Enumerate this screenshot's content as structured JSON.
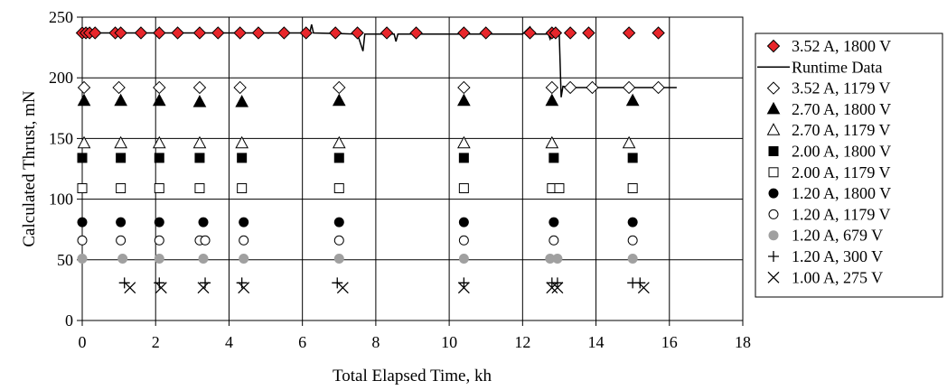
{
  "chart_data": {
    "type": "scatter",
    "xlabel": "Total Elapsed Time, kh",
    "ylabel": "Calculated Thrust, mN",
    "xlim": [
      0,
      18
    ],
    "ylim": [
      0,
      250
    ],
    "xticks": [
      0,
      2,
      4,
      6,
      8,
      10,
      12,
      14,
      16,
      18
    ],
    "yticks": [
      0,
      50,
      100,
      150,
      200,
      250
    ],
    "grid": "vertical and horizontal major gridlines",
    "legend_position": "right",
    "colors": {
      "highlight_fill": "#e8262b",
      "gray_fill": "#a0a0a0",
      "black": "#000000"
    },
    "runtime_data": {
      "name": "Runtime Data",
      "marker": "line",
      "points": [
        [
          0.0,
          237
        ],
        [
          2.0,
          237
        ],
        [
          4.0,
          237
        ],
        [
          6.0,
          237
        ],
        [
          6.2,
          237
        ],
        [
          6.25,
          244
        ],
        [
          6.3,
          237
        ],
        [
          7.5,
          236
        ],
        [
          7.65,
          222
        ],
        [
          7.7,
          236
        ],
        [
          8.5,
          236
        ],
        [
          8.55,
          230
        ],
        [
          8.6,
          236
        ],
        [
          10.0,
          236
        ],
        [
          12.0,
          236
        ],
        [
          12.2,
          242
        ],
        [
          12.3,
          236
        ],
        [
          12.7,
          236
        ],
        [
          12.75,
          232
        ],
        [
          12.8,
          236
        ],
        [
          13.0,
          236
        ],
        [
          13.05,
          184
        ],
        [
          13.1,
          193
        ],
        [
          13.3,
          192
        ],
        [
          15.0,
          192
        ],
        [
          16.2,
          192
        ]
      ]
    },
    "series": [
      {
        "name": "3.52 A, 1800 V",
        "marker": "diamond-filled-red",
        "points": [
          [
            0.0,
            237
          ],
          [
            0.1,
            237
          ],
          [
            0.2,
            237
          ],
          [
            0.35,
            237
          ],
          [
            0.9,
            237
          ],
          [
            1.05,
            237
          ],
          [
            1.6,
            237
          ],
          [
            2.1,
            237
          ],
          [
            2.6,
            237
          ],
          [
            3.2,
            237
          ],
          [
            3.7,
            237
          ],
          [
            4.3,
            237
          ],
          [
            4.8,
            237
          ],
          [
            5.5,
            237
          ],
          [
            6.1,
            237
          ],
          [
            6.9,
            237
          ],
          [
            7.5,
            237
          ],
          [
            8.3,
            237
          ],
          [
            9.1,
            237
          ],
          [
            10.4,
            237
          ],
          [
            11.0,
            237
          ],
          [
            12.2,
            237
          ],
          [
            12.8,
            237
          ],
          [
            12.9,
            237
          ],
          [
            13.3,
            237
          ],
          [
            13.8,
            237
          ],
          [
            14.9,
            237
          ],
          [
            15.7,
            237
          ]
        ]
      },
      {
        "name": "3.52 A, 1179 V",
        "marker": "diamond-open",
        "points": [
          [
            0.05,
            192
          ],
          [
            1.0,
            192
          ],
          [
            2.1,
            192
          ],
          [
            3.2,
            192
          ],
          [
            4.3,
            192
          ],
          [
            7.0,
            192
          ],
          [
            10.4,
            192
          ],
          [
            12.8,
            192
          ],
          [
            13.3,
            192
          ],
          [
            13.9,
            192
          ],
          [
            14.9,
            192
          ],
          [
            15.7,
            192
          ]
        ]
      },
      {
        "name": "2.70 A, 1800 V",
        "marker": "triangle-filled",
        "points": [
          [
            0.05,
            181
          ],
          [
            1.05,
            181
          ],
          [
            2.1,
            181
          ],
          [
            3.2,
            180
          ],
          [
            4.35,
            180
          ],
          [
            7.0,
            181
          ],
          [
            10.4,
            181
          ],
          [
            12.8,
            181
          ],
          [
            15.0,
            181
          ]
        ]
      },
      {
        "name": "2.70 A, 1179 V",
        "marker": "triangle-open",
        "points": [
          [
            0.05,
            146
          ],
          [
            1.05,
            146
          ],
          [
            2.1,
            146
          ],
          [
            3.2,
            146
          ],
          [
            4.35,
            146
          ],
          [
            7.0,
            146
          ],
          [
            10.4,
            146
          ],
          [
            12.8,
            146
          ],
          [
            14.9,
            146
          ]
        ]
      },
      {
        "name": "2.00 A, 1800 V",
        "marker": "square-filled",
        "points": [
          [
            0.0,
            134
          ],
          [
            1.05,
            134
          ],
          [
            2.1,
            134
          ],
          [
            3.2,
            134
          ],
          [
            4.35,
            134
          ],
          [
            7.0,
            134
          ],
          [
            10.4,
            134
          ],
          [
            12.85,
            134
          ],
          [
            15.0,
            134
          ]
        ]
      },
      {
        "name": "2.00 A, 1179 V",
        "marker": "square-open",
        "points": [
          [
            0.0,
            109
          ],
          [
            1.05,
            109
          ],
          [
            2.1,
            109
          ],
          [
            3.2,
            109
          ],
          [
            4.35,
            109
          ],
          [
            7.0,
            109
          ],
          [
            10.4,
            109
          ],
          [
            12.8,
            109
          ],
          [
            13.0,
            109
          ],
          [
            15.0,
            109
          ]
        ]
      },
      {
        "name": "1.20 A, 1800 V",
        "marker": "circle-filled",
        "points": [
          [
            0.0,
            81
          ],
          [
            1.05,
            81
          ],
          [
            2.1,
            81
          ],
          [
            3.3,
            81
          ],
          [
            4.4,
            81
          ],
          [
            7.0,
            81
          ],
          [
            10.4,
            81
          ],
          [
            12.85,
            81
          ],
          [
            15.0,
            81
          ]
        ]
      },
      {
        "name": "1.20 A, 1179 V",
        "marker": "circle-open",
        "points": [
          [
            0.0,
            66
          ],
          [
            1.05,
            66
          ],
          [
            2.1,
            66
          ],
          [
            3.2,
            66
          ],
          [
            3.35,
            66
          ],
          [
            4.4,
            66
          ],
          [
            7.0,
            66
          ],
          [
            10.4,
            66
          ],
          [
            12.85,
            66
          ],
          [
            15.0,
            66
          ]
        ]
      },
      {
        "name": "1.20 A, 679 V",
        "marker": "circle-filled-gray",
        "points": [
          [
            0.0,
            51
          ],
          [
            1.1,
            51
          ],
          [
            2.1,
            51
          ],
          [
            3.3,
            51
          ],
          [
            4.4,
            51
          ],
          [
            7.0,
            51
          ],
          [
            10.4,
            51
          ],
          [
            12.75,
            51
          ],
          [
            12.95,
            51
          ],
          [
            15.0,
            51
          ]
        ]
      },
      {
        "name": "1.20 A, 300 V",
        "marker": "plus",
        "points": [
          [
            1.15,
            31
          ],
          [
            2.1,
            31
          ],
          [
            3.35,
            31
          ],
          [
            4.35,
            31
          ],
          [
            6.95,
            31
          ],
          [
            10.4,
            31
          ],
          [
            12.8,
            31
          ],
          [
            12.95,
            31
          ],
          [
            15.0,
            31
          ],
          [
            15.2,
            31
          ]
        ]
      },
      {
        "name": "1.00 A, 275 V",
        "marker": "x",
        "points": [
          [
            1.3,
            27
          ],
          [
            2.15,
            27
          ],
          [
            3.3,
            27
          ],
          [
            4.4,
            27
          ],
          [
            7.1,
            27
          ],
          [
            10.4,
            27
          ],
          [
            12.8,
            27
          ],
          [
            12.95,
            27
          ],
          [
            15.3,
            27
          ]
        ]
      }
    ],
    "legend": [
      {
        "label": "3.52 A, 1800 V",
        "marker": "diamond-filled-red"
      },
      {
        "label": "Runtime Data",
        "marker": "line"
      },
      {
        "label": "3.52 A, 1179 V",
        "marker": "diamond-open"
      },
      {
        "label": "2.70 A, 1800 V",
        "marker": "triangle-filled"
      },
      {
        "label": "2.70 A, 1179 V",
        "marker": "triangle-open"
      },
      {
        "label": "2.00 A, 1800 V",
        "marker": "square-filled"
      },
      {
        "label": "2.00 A, 1179 V",
        "marker": "square-open"
      },
      {
        "label": "1.20 A, 1800 V",
        "marker": "circle-filled"
      },
      {
        "label": "1.20 A, 1179 V",
        "marker": "circle-open"
      },
      {
        "label": "1.20 A, 679 V",
        "marker": "circle-filled-gray"
      },
      {
        "label": "1.20 A, 300 V",
        "marker": "plus"
      },
      {
        "label": "1.00 A, 275 V",
        "marker": "x"
      }
    ]
  }
}
